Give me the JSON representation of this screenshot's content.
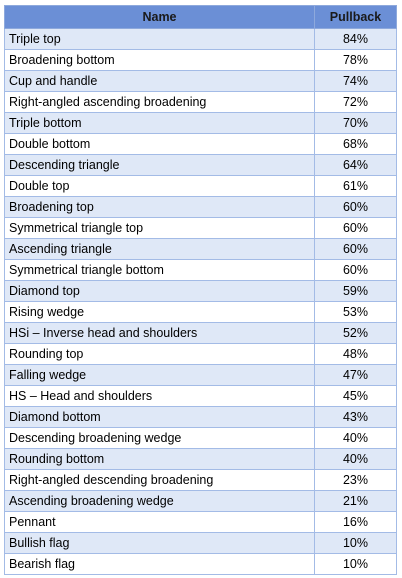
{
  "table": {
    "headers": [
      "Name",
      "Pullback"
    ],
    "rows": [
      {
        "name": "Triple top",
        "pullback": "84%"
      },
      {
        "name": "Broadening bottom",
        "pullback": "78%"
      },
      {
        "name": "Cup and handle",
        "pullback": "74%"
      },
      {
        "name": "Right-angled ascending broadening",
        "pullback": "72%"
      },
      {
        "name": "Triple bottom",
        "pullback": "70%"
      },
      {
        "name": "Double bottom",
        "pullback": "68%"
      },
      {
        "name": "Descending triangle",
        "pullback": "64%"
      },
      {
        "name": "Double top",
        "pullback": "61%"
      },
      {
        "name": "Broadening top",
        "pullback": "60%"
      },
      {
        "name": "Symmetrical triangle top",
        "pullback": "60%"
      },
      {
        "name": "Ascending triangle",
        "pullback": "60%"
      },
      {
        "name": "Symmetrical triangle bottom",
        "pullback": "60%"
      },
      {
        "name": "Diamond top",
        "pullback": "59%"
      },
      {
        "name": "Rising wedge",
        "pullback": "53%"
      },
      {
        "name": "HSi – Inverse head and shoulders",
        "pullback": "52%"
      },
      {
        "name": "Rounding top",
        "pullback": "48%"
      },
      {
        "name": "Falling wedge",
        "pullback": "47%"
      },
      {
        "name": "HS – Head and shoulders",
        "pullback": "45%"
      },
      {
        "name": "Diamond bottom",
        "pullback": "43%"
      },
      {
        "name": "Descending broadening wedge",
        "pullback": "40%"
      },
      {
        "name": "Rounding bottom",
        "pullback": "40%"
      },
      {
        "name": "Right-angled descending broadening",
        "pullback": "23%"
      },
      {
        "name": "Ascending broadening wedge",
        "pullback": "21%"
      },
      {
        "name": "Pennant",
        "pullback": "16%"
      },
      {
        "name": "Bullish flag",
        "pullback": "10%"
      },
      {
        "name": "Bearish flag",
        "pullback": "10%"
      }
    ]
  },
  "colors": {
    "header_bg": "#6b8fd6",
    "row_alt_bg": "#dfe8f7",
    "border": "#a3bbe6"
  }
}
